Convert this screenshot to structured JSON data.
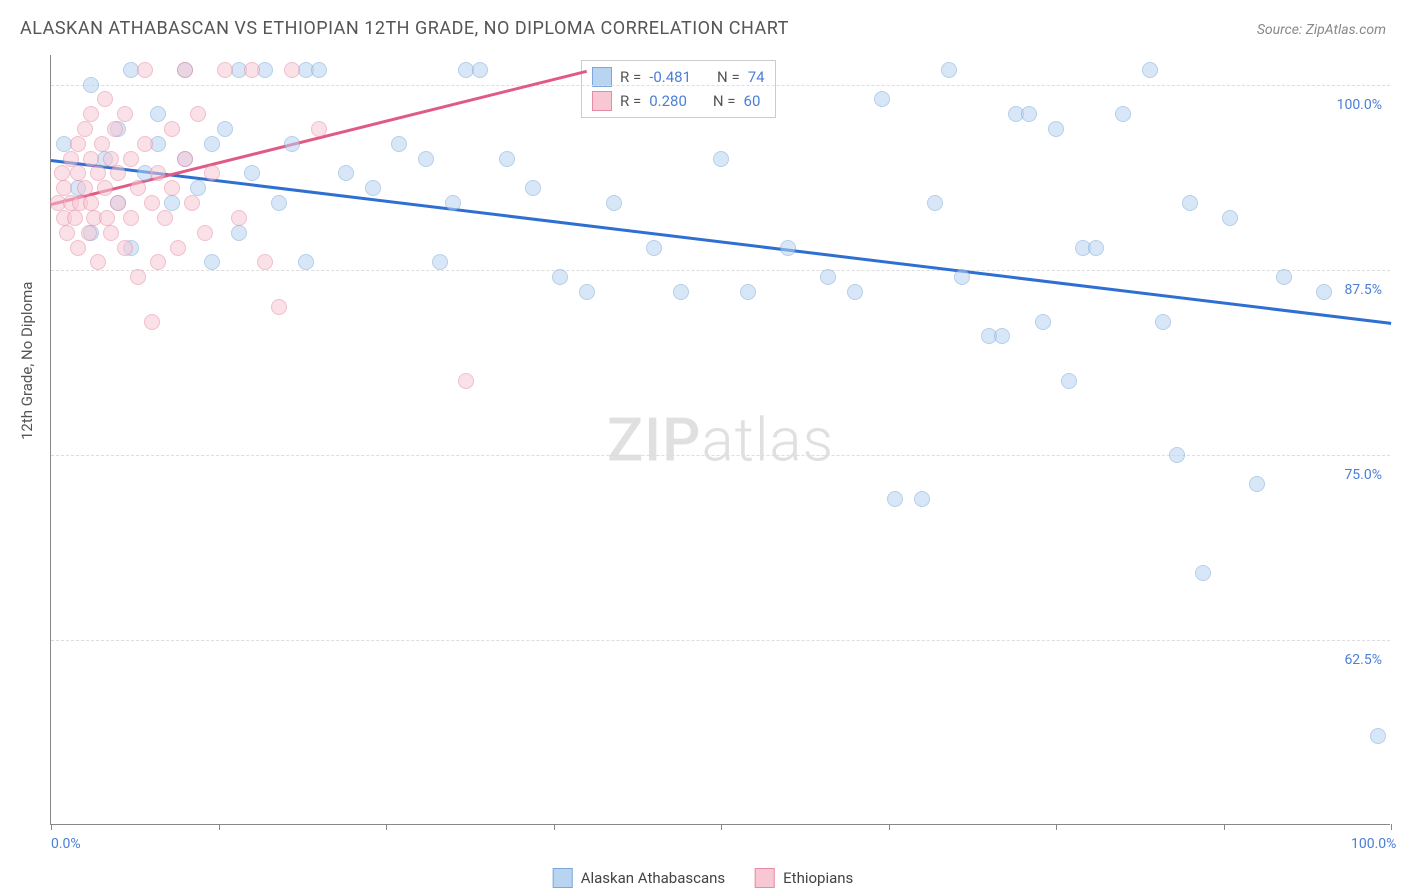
{
  "title": "ALASKAN ATHABASCAN VS ETHIOPIAN 12TH GRADE, NO DIPLOMA CORRELATION CHART",
  "source": "Source: ZipAtlas.com",
  "y_axis_title": "12th Grade, No Diploma",
  "watermark": {
    "bold": "ZIP",
    "light": "atlas"
  },
  "chart": {
    "type": "scatter",
    "xlim": [
      0,
      100
    ],
    "ylim": [
      50,
      102
    ],
    "x_ticks": [
      0,
      12.5,
      25,
      37.5,
      50,
      62.5,
      75,
      87.5,
      100
    ],
    "x_tick_labels": {
      "0": "0.0%",
      "100": "100.0%"
    },
    "y_gridlines": [
      62.5,
      75,
      87.5,
      100
    ],
    "y_tick_labels": {
      "62.5": "62.5%",
      "75": "75.0%",
      "87.5": "87.5%",
      "100": "100.0%"
    },
    "grid_color": "#dddddd",
    "axis_color": "#888888",
    "label_color": "#4a7fd8",
    "background_color": "#ffffff",
    "series": [
      {
        "name": "Alaskan Athabascans",
        "color_fill": "#b9d4f1",
        "color_stroke": "#7ca8d8",
        "marker_size": 16,
        "r": "-0.481",
        "n": "74",
        "trend": {
          "x1": 0,
          "y1": 95,
          "x2": 100,
          "y2": 84,
          "color": "#2e6fd1",
          "width": 2.5
        },
        "points": [
          [
            1,
            96
          ],
          [
            2,
            93
          ],
          [
            3,
            90
          ],
          [
            3,
            100
          ],
          [
            4,
            95
          ],
          [
            5,
            92
          ],
          [
            5,
            97
          ],
          [
            6,
            101
          ],
          [
            6,
            89
          ],
          [
            7,
            94
          ],
          [
            8,
            96
          ],
          [
            8,
            98
          ],
          [
            9,
            92
          ],
          [
            10,
            101
          ],
          [
            10,
            95
          ],
          [
            11,
            93
          ],
          [
            12,
            96
          ],
          [
            12,
            88
          ],
          [
            13,
            97
          ],
          [
            14,
            101
          ],
          [
            14,
            90
          ],
          [
            15,
            94
          ],
          [
            16,
            101
          ],
          [
            17,
            92
          ],
          [
            18,
            96
          ],
          [
            19,
            101
          ],
          [
            19,
            88
          ],
          [
            20,
            101
          ],
          [
            22,
            94
          ],
          [
            24,
            93
          ],
          [
            26,
            96
          ],
          [
            28,
            95
          ],
          [
            29,
            88
          ],
          [
            30,
            92
          ],
          [
            31,
            101
          ],
          [
            32,
            101
          ],
          [
            34,
            95
          ],
          [
            36,
            93
          ],
          [
            38,
            87
          ],
          [
            40,
            86
          ],
          [
            42,
            92
          ],
          [
            45,
            89
          ],
          [
            47,
            86
          ],
          [
            50,
            95
          ],
          [
            52,
            86
          ],
          [
            55,
            89
          ],
          [
            58,
            87
          ],
          [
            60,
            86
          ],
          [
            62,
            99
          ],
          [
            63,
            72
          ],
          [
            65,
            72
          ],
          [
            66,
            92
          ],
          [
            67,
            101
          ],
          [
            68,
            87
          ],
          [
            70,
            83
          ],
          [
            71,
            83
          ],
          [
            72,
            98
          ],
          [
            73,
            98
          ],
          [
            74,
            84
          ],
          [
            75,
            97
          ],
          [
            76,
            80
          ],
          [
            77,
            89
          ],
          [
            78,
            89
          ],
          [
            80,
            98
          ],
          [
            82,
            101
          ],
          [
            83,
            84
          ],
          [
            84,
            75
          ],
          [
            85,
            92
          ],
          [
            86,
            67
          ],
          [
            88,
            91
          ],
          [
            90,
            73
          ],
          [
            92,
            87
          ],
          [
            95,
            86
          ],
          [
            99,
            56
          ]
        ]
      },
      {
        "name": "Ethiopians",
        "color_fill": "#f7c7d4",
        "color_stroke": "#e88aa5",
        "marker_size": 16,
        "r": "0.280",
        "n": "60",
        "trend": {
          "x1": 0,
          "y1": 92,
          "x2": 40,
          "y2": 101,
          "color": "#e05a85",
          "width": 2.5
        },
        "points": [
          [
            0.5,
            92
          ],
          [
            0.8,
            94
          ],
          [
            1,
            91
          ],
          [
            1,
            93
          ],
          [
            1.2,
            90
          ],
          [
            1.5,
            95
          ],
          [
            1.5,
            92
          ],
          [
            1.8,
            91
          ],
          [
            2,
            94
          ],
          [
            2,
            96
          ],
          [
            2,
            89
          ],
          [
            2.2,
            92
          ],
          [
            2.5,
            93
          ],
          [
            2.5,
            97
          ],
          [
            2.8,
            90
          ],
          [
            3,
            95
          ],
          [
            3,
            92
          ],
          [
            3,
            98
          ],
          [
            3.2,
            91
          ],
          [
            3.5,
            94
          ],
          [
            3.5,
            88
          ],
          [
            3.8,
            96
          ],
          [
            4,
            93
          ],
          [
            4,
            99
          ],
          [
            4.2,
            91
          ],
          [
            4.5,
            95
          ],
          [
            4.5,
            90
          ],
          [
            4.8,
            97
          ],
          [
            5,
            92
          ],
          [
            5,
            94
          ],
          [
            5.5,
            89
          ],
          [
            5.5,
            98
          ],
          [
            6,
            91
          ],
          [
            6,
            95
          ],
          [
            6.5,
            93
          ],
          [
            6.5,
            87
          ],
          [
            7,
            96
          ],
          [
            7,
            101
          ],
          [
            7.5,
            92
          ],
          [
            7.5,
            84
          ],
          [
            8,
            94
          ],
          [
            8,
            88
          ],
          [
            8.5,
            91
          ],
          [
            9,
            97
          ],
          [
            9,
            93
          ],
          [
            9.5,
            89
          ],
          [
            10,
            95
          ],
          [
            10,
            101
          ],
          [
            10.5,
            92
          ],
          [
            11,
            98
          ],
          [
            11.5,
            90
          ],
          [
            12,
            94
          ],
          [
            13,
            101
          ],
          [
            14,
            91
          ],
          [
            15,
            101
          ],
          [
            16,
            88
          ],
          [
            17,
            85
          ],
          [
            18,
            101
          ],
          [
            20,
            97
          ],
          [
            31,
            80
          ]
        ]
      }
    ]
  },
  "legend_top_label_r": "R =",
  "legend_top_label_n": "N ="
}
